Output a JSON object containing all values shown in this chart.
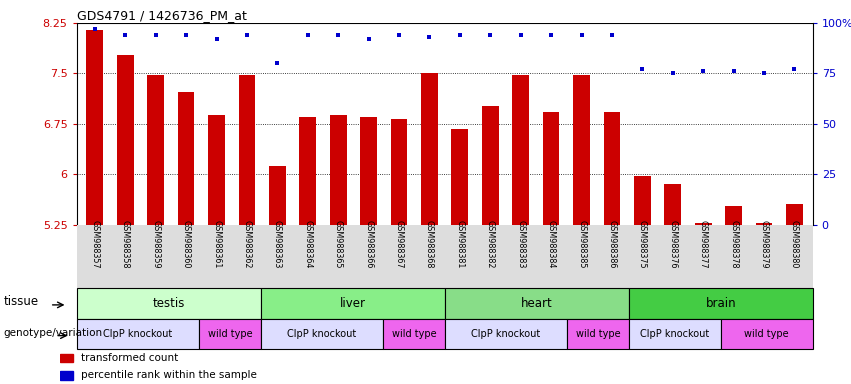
{
  "title": "GDS4791 / 1426736_PM_at",
  "samples": [
    "GSM988357",
    "GSM988358",
    "GSM988359",
    "GSM988360",
    "GSM988361",
    "GSM988362",
    "GSM988363",
    "GSM988364",
    "GSM988365",
    "GSM988366",
    "GSM988367",
    "GSM988368",
    "GSM988381",
    "GSM988382",
    "GSM988383",
    "GSM988384",
    "GSM988385",
    "GSM988386",
    "GSM988375",
    "GSM988376",
    "GSM988377",
    "GSM988378",
    "GSM988379",
    "GSM988380"
  ],
  "bar_values": [
    8.15,
    7.78,
    7.47,
    7.23,
    6.88,
    7.47,
    6.12,
    6.85,
    6.88,
    6.85,
    6.82,
    7.5,
    6.68,
    7.02,
    7.47,
    6.92,
    7.48,
    6.92,
    5.97,
    5.85,
    5.28,
    5.53,
    5.28,
    5.55
  ],
  "percentile_values": [
    97,
    94,
    94,
    94,
    92,
    94,
    80,
    94,
    94,
    92,
    94,
    93,
    94,
    94,
    94,
    94,
    94,
    94,
    77,
    75,
    76,
    76,
    75,
    77
  ],
  "ylim": [
    5.25,
    8.25
  ],
  "yticks": [
    5.25,
    6.0,
    6.75,
    7.5,
    8.25
  ],
  "ytick_labels": [
    "5.25",
    "6",
    "6.75",
    "7.5",
    "8.25"
  ],
  "right_yticks": [
    0,
    25,
    50,
    75,
    100
  ],
  "right_ytick_labels": [
    "0",
    "25",
    "50",
    "75",
    "100%"
  ],
  "bar_color": "#cc0000",
  "dot_color": "#0000cc",
  "tissues": [
    {
      "label": "testis",
      "start": 0,
      "end": 6,
      "color": "#ccffcc"
    },
    {
      "label": "liver",
      "start": 6,
      "end": 12,
      "color": "#88ee88"
    },
    {
      "label": "heart",
      "start": 12,
      "end": 18,
      "color": "#88dd88"
    },
    {
      "label": "brain",
      "start": 18,
      "end": 24,
      "color": "#44cc44"
    }
  ],
  "genotypes": [
    {
      "label": "ClpP knockout",
      "start": 0,
      "end": 4,
      "color": "#ddddff"
    },
    {
      "label": "wild type",
      "start": 4,
      "end": 6,
      "color": "#ee66ee"
    },
    {
      "label": "ClpP knockout",
      "start": 6,
      "end": 10,
      "color": "#ddddff"
    },
    {
      "label": "wild type",
      "start": 10,
      "end": 12,
      "color": "#ee66ee"
    },
    {
      "label": "ClpP knockout",
      "start": 12,
      "end": 16,
      "color": "#ddddff"
    },
    {
      "label": "wild type",
      "start": 16,
      "end": 18,
      "color": "#ee66ee"
    },
    {
      "label": "ClpP knockout",
      "start": 18,
      "end": 21,
      "color": "#ddddff"
    },
    {
      "label": "wild type",
      "start": 21,
      "end": 24,
      "color": "#ee66ee"
    }
  ],
  "legend_items": [
    {
      "label": "transformed count",
      "color": "#cc0000"
    },
    {
      "label": "percentile rank within the sample",
      "color": "#0000cc"
    }
  ],
  "bar_width": 0.55,
  "background_color": "#ffffff",
  "tissue_row_label": "tissue",
  "genotype_row_label": "genotype/variation",
  "xtick_bg": "#dddddd"
}
